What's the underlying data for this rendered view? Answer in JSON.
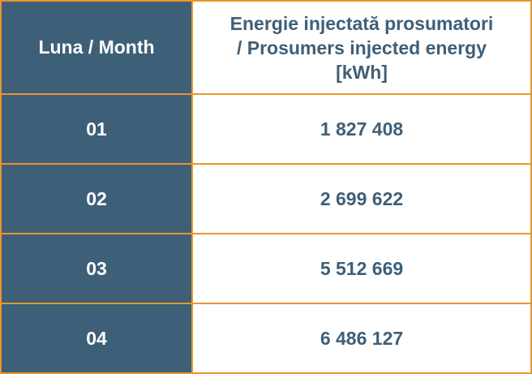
{
  "table": {
    "header": [
      "Luna / Month",
      [
        "Energie injectată prosumatori",
        "/ Prosumers injected energy",
        "[kWh]"
      ]
    ],
    "rows": [
      [
        "01",
        "1 827 408"
      ],
      [
        "02",
        "2 699 622"
      ],
      [
        "03",
        "5 512 669"
      ],
      [
        "04",
        "6 486 127"
      ]
    ]
  }
}
